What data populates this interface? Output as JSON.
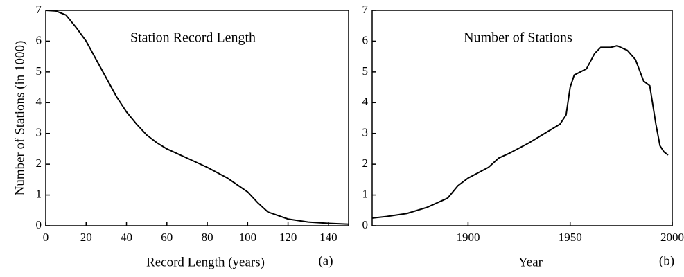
{
  "chart_data": [
    {
      "type": "line",
      "title": "Station Record Length",
      "xlabel": "Record Length (years)",
      "ylabel": "Number of Stations (in 1000)",
      "panel_label": "(a)",
      "x": [
        0,
        5,
        10,
        15,
        20,
        25,
        30,
        35,
        40,
        45,
        50,
        55,
        60,
        70,
        80,
        90,
        100,
        105,
        110,
        120,
        130,
        140,
        150
      ],
      "series": [
        {
          "name": "Stations",
          "color": "#000000",
          "values": [
            7,
            6.98,
            6.85,
            6.45,
            6.0,
            5.4,
            4.8,
            4.2,
            3.7,
            3.3,
            2.95,
            2.7,
            2.5,
            2.2,
            1.9,
            1.55,
            1.1,
            0.75,
            0.45,
            0.22,
            0.12,
            0.08,
            0.05
          ]
        }
      ],
      "xlim": [
        0,
        150
      ],
      "xticks": [
        0,
        20,
        40,
        60,
        80,
        100,
        120,
        140
      ],
      "ylim": [
        0,
        7
      ],
      "yticks": [
        0,
        1,
        2,
        3,
        4,
        5,
        6,
        7
      ]
    },
    {
      "type": "line",
      "title": "Number of Stations",
      "xlabel": "Year",
      "panel_label": "(b)",
      "x": [
        1853,
        1860,
        1870,
        1880,
        1890,
        1895,
        1900,
        1910,
        1915,
        1920,
        1930,
        1940,
        1945,
        1948,
        1950,
        1952,
        1955,
        1958,
        1962,
        1965,
        1970,
        1973,
        1978,
        1982,
        1986,
        1989,
        1992,
        1994,
        1996,
        1998
      ],
      "series": [
        {
          "name": "Stations",
          "color": "#000000",
          "values": [
            0.25,
            0.3,
            0.4,
            0.6,
            0.9,
            1.3,
            1.55,
            1.9,
            2.2,
            2.35,
            2.7,
            3.1,
            3.3,
            3.6,
            4.5,
            4.9,
            5.0,
            5.1,
            5.6,
            5.8,
            5.8,
            5.85,
            5.7,
            5.4,
            4.7,
            4.55,
            3.3,
            2.6,
            2.4,
            2.3
          ]
        }
      ],
      "xlim": [
        1853,
        2000
      ],
      "xticks": [
        1900,
        1950,
        2000
      ],
      "ylim": [
        0,
        7
      ],
      "yticks": [
        0,
        1,
        2,
        3,
        4,
        5,
        6,
        7
      ]
    }
  ]
}
